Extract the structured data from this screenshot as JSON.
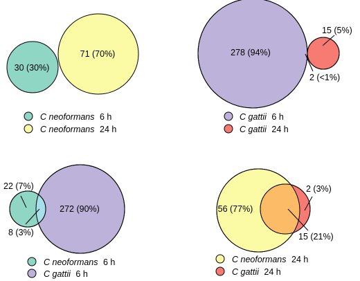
{
  "colors": {
    "c_neoformans_6h": "#8fd6c5",
    "c_neoformans_24h": "#fbfba6",
    "c_gattii_6h": "#bdb3da",
    "c_gattii_24h": "#f77b72",
    "overlap_green_purple": "#a6e0eb",
    "overlap_purple_red": "#e8b3e6",
    "overlap_yellow_red": "#fbbb67",
    "outline": "#000000"
  },
  "panels": [
    {
      "id": "top-left",
      "sets": [
        {
          "key": "c_neoformans_6h",
          "label": "30 (30%)"
        },
        {
          "key": "c_neoformans_24h",
          "label": "71 (70%)"
        }
      ],
      "overlap": null,
      "legend": [
        {
          "key": "c_neoformans_6h",
          "species": "C neoformans",
          "time": "6 h"
        },
        {
          "key": "c_neoformans_24h",
          "species": "C neoformans",
          "time": "24 h"
        }
      ]
    },
    {
      "id": "top-right",
      "sets": [
        {
          "key": "c_gattii_6h",
          "label": "278 (94%)"
        },
        {
          "key": "c_gattii_24h",
          "label": "15 (5%)"
        }
      ],
      "overlap": {
        "label": "2 (<1%)"
      },
      "legend": [
        {
          "key": "c_gattii_6h",
          "species": "C gattii",
          "time": "6 h"
        },
        {
          "key": "c_gattii_24h",
          "species": "C gattii",
          "time": "24 h"
        }
      ]
    },
    {
      "id": "bottom-left",
      "sets": [
        {
          "key": "c_neoformans_6h",
          "label": "22 (7%)"
        },
        {
          "key": "c_gattii_6h",
          "label": "272 (90%)"
        }
      ],
      "overlap": {
        "label": "8 (3%)"
      },
      "legend": [
        {
          "key": "c_neoformans_6h",
          "species": "C neoformans",
          "time": "6 h"
        },
        {
          "key": "c_gattii_6h",
          "species": "C gattii",
          "time": "6 h"
        }
      ]
    },
    {
      "id": "bottom-right",
      "sets": [
        {
          "key": "c_neoformans_24h",
          "label": "56 (77%)"
        },
        {
          "key": "c_gattii_24h",
          "label": "2 (3%)"
        }
      ],
      "overlap": {
        "label": "15 (21%)"
      },
      "legend": [
        {
          "key": "c_neoformans_24h",
          "species": "C neoformans",
          "time": "24 h"
        },
        {
          "key": "c_gattii_24h",
          "species": "C gattii",
          "time": "24 h"
        }
      ]
    }
  ]
}
